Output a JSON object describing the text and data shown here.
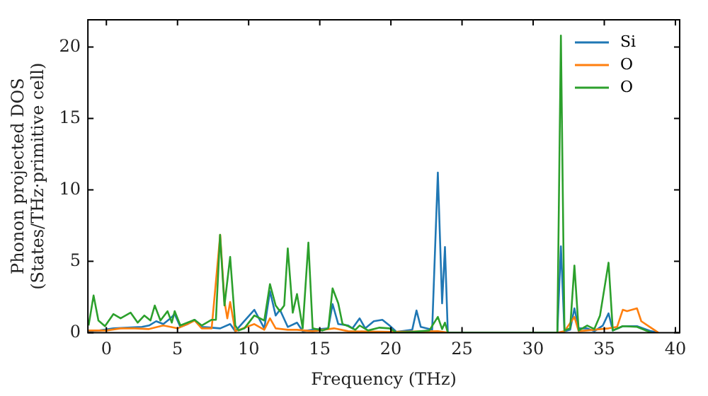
{
  "chart_data": {
    "type": "line",
    "xlabel": "Frequency (THz)",
    "ylabel": "Phonon projected DOS\n(States/THz·primitive cell)",
    "xlim": [
      -1.3,
      40.3
    ],
    "ylim": [
      0,
      21.9
    ],
    "xticks": [
      0,
      5,
      10,
      15,
      20,
      25,
      30,
      35,
      40
    ],
    "yticks": [
      0,
      5,
      10,
      15,
      20
    ],
    "legend": "top right",
    "marker": "none",
    "line_style": "solid",
    "series": [
      {
        "name": "Si",
        "color": "#1f77b4",
        "x": [
          -1.25,
          -0.5,
          0.5,
          1.5,
          2.5,
          3,
          3.5,
          4,
          4.5,
          4.8,
          5.2,
          5.7,
          6.2,
          6.7,
          7.4,
          8,
          8.7,
          9.06,
          10.4,
          11.1,
          11.5,
          11.9,
          12.2,
          12.75,
          13.4,
          13.8,
          14.5,
          15.6,
          15.9,
          16.3,
          17,
          17.3,
          17.8,
          18.2,
          18.8,
          19.4,
          19.9,
          20.4,
          21.5,
          21.8,
          22.1,
          22.9,
          23.3,
          23.6,
          23.8,
          24,
          31.7,
          31.95,
          32.2,
          32.6,
          32.9,
          33.2,
          33.8,
          34.3,
          34.9,
          35.3,
          35.6,
          36.3,
          37.3,
          38.3,
          38.8
        ],
        "values": [
          0.1,
          0.15,
          0.3,
          0.35,
          0.4,
          0.5,
          0.8,
          0.6,
          1.0,
          1.3,
          0.4,
          0.6,
          0.9,
          0.4,
          0.35,
          0.3,
          0.6,
          0.1,
          1.6,
          0.3,
          2.9,
          1.2,
          1.6,
          0.4,
          0.7,
          0.1,
          0.2,
          0.3,
          2.0,
          0.6,
          0.5,
          0.3,
          1.0,
          0.3,
          0.8,
          0.9,
          0.5,
          0.05,
          0.2,
          1.55,
          0.4,
          0.2,
          11.2,
          2.05,
          6.0,
          0,
          0,
          6.05,
          0.1,
          0.2,
          1.7,
          0.3,
          0.3,
          0.1,
          0.5,
          1.35,
          0.15,
          0.45,
          0.45,
          0.1,
          0
        ]
      },
      {
        "name": "O",
        "color": "#ff7f0e",
        "x": [
          -1.25,
          0,
          1,
          2,
          3,
          4,
          5,
          5.7,
          6.2,
          6.7,
          7.4,
          8,
          8.3,
          8.5,
          8.7,
          9.06,
          10.4,
          11.1,
          11.5,
          11.9,
          12.75,
          13.4,
          14.5,
          16,
          17,
          20,
          23.3,
          24,
          31.7,
          32.2,
          32.9,
          33.2,
          35.3,
          35.9,
          36.3,
          36.6,
          37.3,
          37.6,
          38.2,
          38.8
        ],
        "values": [
          0.15,
          0.15,
          0.3,
          0.3,
          0.25,
          0.5,
          0.3,
          0.6,
          0.85,
          0.3,
          0.3,
          6.85,
          2.2,
          1.0,
          2.15,
          0.1,
          0.6,
          0.2,
          1.0,
          0.3,
          0.2,
          0.2,
          0.1,
          0.3,
          0.1,
          0.05,
          0.1,
          0,
          0,
          0.1,
          1.1,
          0.1,
          0.3,
          0.4,
          1.6,
          1.5,
          1.7,
          0.8,
          0.4,
          0
        ]
      },
      {
        "name": "O",
        "color": "#2ca02c",
        "x": [
          -1.25,
          -0.9,
          -0.56,
          -0.1,
          0.49,
          1.0,
          1.7,
          2.2,
          2.67,
          3.1,
          3.4,
          3.8,
          4.3,
          4.6,
          4.8,
          5.2,
          5.7,
          6.2,
          6.7,
          7.4,
          7.7,
          7.99,
          8.3,
          8.7,
          9.06,
          9.3,
          9.7,
          10.4,
          11.1,
          11.5,
          11.9,
          12.2,
          12.5,
          12.75,
          13.1,
          13.4,
          13.8,
          14.2,
          14.5,
          15.2,
          15.6,
          15.9,
          16.3,
          16.6,
          17.0,
          17.5,
          17.8,
          18.4,
          19.2,
          19.9,
          20.4,
          21.5,
          22.7,
          23.3,
          23.6,
          23.8,
          24.0,
          31.7,
          31.95,
          32.2,
          32.6,
          32.9,
          33.2,
          33.8,
          34.3,
          34.7,
          35.3,
          35.6,
          36.3,
          37.3,
          38.3
        ],
        "values": [
          0.5,
          2.6,
          0.85,
          0.45,
          1.3,
          1.0,
          1.4,
          0.7,
          1.2,
          0.85,
          1.9,
          0.85,
          1.5,
          0.7,
          1.5,
          0.5,
          0.7,
          0.9,
          0.5,
          0.9,
          0.9,
          6.85,
          1.9,
          5.3,
          0.5,
          0.15,
          0.3,
          1.2,
          0.85,
          3.4,
          1.9,
          1.5,
          1.9,
          5.9,
          1.4,
          2.7,
          0.3,
          6.3,
          0.3,
          0.15,
          0.3,
          3.1,
          2.05,
          0.6,
          0.45,
          0.2,
          0.5,
          0.15,
          0.35,
          0.3,
          0,
          0.05,
          0.15,
          1.1,
          0.25,
          0.7,
          0,
          0,
          20.8,
          0.15,
          0.3,
          4.7,
          0.15,
          0.5,
          0.25,
          1.2,
          4.9,
          0.15,
          0.45,
          0.4,
          0
        ]
      }
    ]
  }
}
